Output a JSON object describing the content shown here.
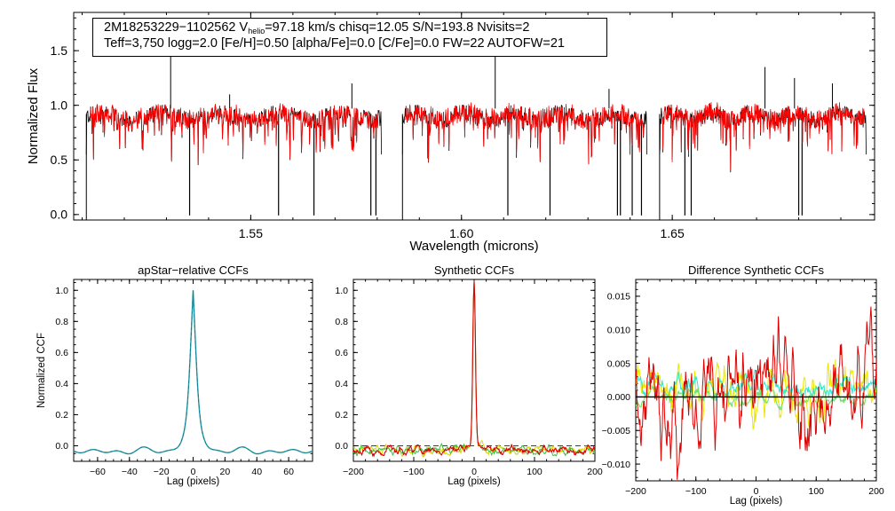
{
  "chart_data": [
    {
      "type": "line",
      "title": "",
      "xlabel": "Wavelength (microns)",
      "ylabel": "Normalized Flux",
      "xlim": [
        1.508,
        1.698
      ],
      "ylim": [
        -0.05,
        1.85
      ],
      "xticks": [
        {
          "v": 1.55,
          "label": "1.55"
        },
        {
          "v": 1.6,
          "label": "1.60"
        },
        {
          "v": 1.65,
          "label": "1.65"
        }
      ],
      "yticks": [
        {
          "v": 0.0,
          "label": "0.0"
        },
        {
          "v": 0.5,
          "label": "0.5"
        },
        {
          "v": 1.0,
          "label": "1.0"
        },
        {
          "v": 1.5,
          "label": "1.5"
        }
      ],
      "chips": [
        [
          1.511,
          1.581
        ],
        [
          1.586,
          1.644
        ],
        [
          1.647,
          1.696
        ]
      ],
      "continuum": 0.92,
      "series": [
        {
          "name": "observed",
          "color": "#000000"
        },
        {
          "name": "model",
          "color": "#ff0000"
        }
      ],
      "deep_lines": [
        {
          "x": 1.5355,
          "y": 0.0
        },
        {
          "x": 1.5566,
          "y": 0.0
        },
        {
          "x": 1.565,
          "y": 0.0
        },
        {
          "x": 1.5785,
          "y": 0.0
        },
        {
          "x": 1.5797,
          "y": 0.0
        },
        {
          "x": 1.611,
          "y": 0.0
        },
        {
          "x": 1.621,
          "y": 0.0
        },
        {
          "x": 1.637,
          "y": 0.0
        },
        {
          "x": 1.6377,
          "y": 0.0
        },
        {
          "x": 1.6405,
          "y": 0.0
        },
        {
          "x": 1.6427,
          "y": 0.0
        },
        {
          "x": 1.653,
          "y": 0.0
        },
        {
          "x": 1.6545,
          "y": 0.0
        },
        {
          "x": 1.68,
          "y": 0.0
        },
        {
          "x": 1.6808,
          "y": 0.0
        }
      ],
      "spikes": [
        {
          "x": 1.531,
          "y": 1.45
        },
        {
          "x": 1.545,
          "y": 1.1
        },
        {
          "x": 1.574,
          "y": 1.2
        },
        {
          "x": 1.608,
          "y": 1.45
        },
        {
          "x": 1.635,
          "y": 1.15
        },
        {
          "x": 1.672,
          "y": 1.35
        },
        {
          "x": 1.679,
          "y": 1.25
        },
        {
          "x": 1.688,
          "y": 1.2
        }
      ],
      "annotation": {
        "line1_start": "2M18253229−1102562  V",
        "line1_sub": "helio",
        "line1_end": "=97.18 km/s  chisq=12.05  S/N=193.8  Nvisits=2",
        "line2": "Teff=3,750 logg=2.0 [Fe/H]=0.50 [alpha/Fe]=0.0 [C/Fe]=0.0 FW=22 AUTOFW=21"
      }
    },
    {
      "type": "line",
      "title": "apStar−relative CCFs",
      "xlabel": "Lag (pixels)",
      "ylabel": "Normalized CCF",
      "xlim": [
        -75,
        75
      ],
      "ylim": [
        -0.1,
        1.07
      ],
      "xticks": [
        {
          "v": -60,
          "label": "−60"
        },
        {
          "v": -40,
          "label": "−40"
        },
        {
          "v": -20,
          "label": "−20"
        },
        {
          "v": 0,
          "label": "0"
        },
        {
          "v": 20,
          "label": "20"
        },
        {
          "v": 40,
          "label": "40"
        },
        {
          "v": 60,
          "label": "60"
        }
      ],
      "yticks": [
        {
          "v": 0.0,
          "label": "0.0"
        },
        {
          "v": 0.2,
          "label": "0.2"
        },
        {
          "v": 0.4,
          "label": "0.4"
        },
        {
          "v": 0.6,
          "label": "0.6"
        },
        {
          "v": 0.8,
          "label": "0.8"
        },
        {
          "v": 1.0,
          "label": "1.0"
        }
      ],
      "series": [
        {
          "name": "ccf",
          "color": "#1a9a9a"
        }
      ],
      "peak": 1.0,
      "baseline": -0.035
    },
    {
      "type": "line",
      "title": "Synthetic CCFs",
      "xlabel": "Lag (pixels)",
      "ylabel": "",
      "xlim": [
        -200,
        200
      ],
      "ylim": [
        -0.1,
        1.07
      ],
      "xticks": [
        {
          "v": -200,
          "label": "−200"
        },
        {
          "v": -100,
          "label": "−100"
        },
        {
          "v": 0,
          "label": "0"
        },
        {
          "v": 100,
          "label": "100"
        },
        {
          "v": 200,
          "label": "200"
        }
      ],
      "yticks": [
        {
          "v": 0.0,
          "label": "0.0"
        },
        {
          "v": 0.2,
          "label": "0.2"
        },
        {
          "v": 0.4,
          "label": "0.4"
        },
        {
          "v": 0.6,
          "label": "0.6"
        },
        {
          "v": 0.8,
          "label": "0.8"
        },
        {
          "v": 1.0,
          "label": "1.0"
        }
      ],
      "series": [
        {
          "name": "visit-yellow",
          "color": "#d8d800"
        },
        {
          "name": "visit-green",
          "color": "#40c040"
        },
        {
          "name": "visit-red",
          "color": "#e00000"
        }
      ],
      "peak": 1.0,
      "baseline": -0.03
    },
    {
      "type": "line",
      "title": "Difference Synthetic CCFs",
      "xlabel": "Lag (pixels)",
      "ylabel": "",
      "xlim": [
        -200,
        200
      ],
      "ylim": [
        -0.0125,
        0.0175
      ],
      "xticks": [
        {
          "v": -200,
          "label": "−200"
        },
        {
          "v": -100,
          "label": "−100"
        },
        {
          "v": 0,
          "label": "0"
        },
        {
          "v": 100,
          "label": "100"
        },
        {
          "v": 200,
          "label": "200"
        }
      ],
      "yticks": [
        {
          "v": -0.01,
          "label": "−0.010"
        },
        {
          "v": -0.005,
          "label": "−0.005"
        },
        {
          "v": 0.0,
          "label": "0.000"
        },
        {
          "v": 0.005,
          "label": "0.005"
        },
        {
          "v": 0.01,
          "label": "0.010"
        },
        {
          "v": 0.015,
          "label": "0.015"
        }
      ],
      "series": [
        {
          "name": "diff-yellow",
          "color": "#e8e800"
        },
        {
          "name": "diff-cyan",
          "color": "#30e8d0"
        },
        {
          "name": "diff-green",
          "color": "#70e070"
        },
        {
          "name": "diff-red",
          "color": "#e00000"
        }
      ],
      "zero_line_color": "#000000"
    }
  ]
}
